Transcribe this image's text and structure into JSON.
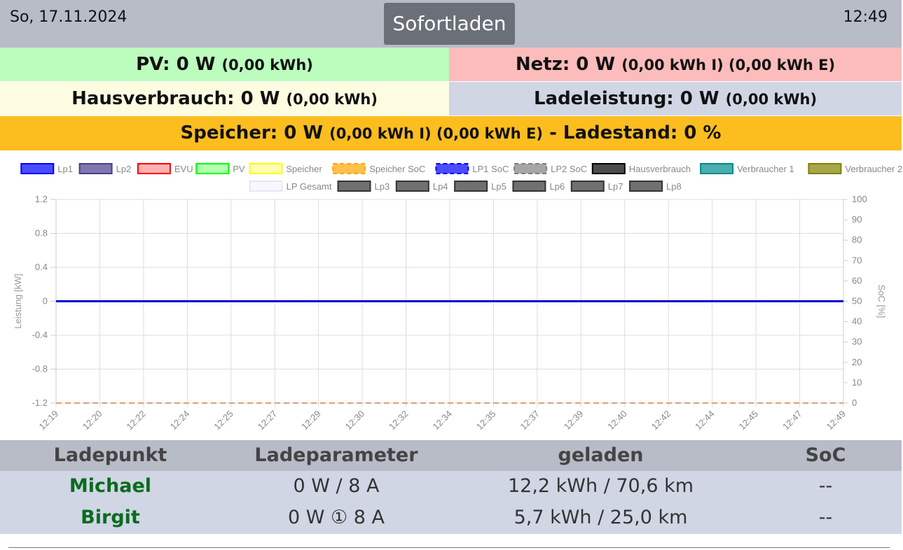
{
  "header": {
    "date": "So, 17.11.2024",
    "mode_button": "Sofortladen",
    "time": "12:49"
  },
  "summary": {
    "pv": {
      "label": "PV: 0 W",
      "detail": "(0,00 kWh)",
      "color": "#bcfcbd"
    },
    "netz": {
      "label": "Netz: 0 W",
      "detail": "(0,00 kWh I) (0,00 kWh E)",
      "color": "#fcbcbc"
    },
    "hausverbrauch": {
      "label": "Hausverbrauch: 0 W",
      "detail": "(0,00 kWh)",
      "color": "#fefce0"
    },
    "ladeleistung": {
      "label": "Ladeleistung: 0 W",
      "detail": "(0,00 kWh)",
      "color": "#d0d6e4"
    },
    "speicher": {
      "label": "Speicher: 0 W",
      "detail": "(0,00 kWh I) (0,00 kWh E)",
      "suffix": "- Ladestand: 0 %",
      "color": "#fcbd1f"
    }
  },
  "chart_data": {
    "type": "line",
    "xlabel": "",
    "ylabel": "Leistung [kW]",
    "y2label": "SoC [%]",
    "ylim": [
      -1.2,
      1.2
    ],
    "y_ticks": [
      "1.2",
      "0.8",
      "0.4",
      "0",
      "-0.4",
      "-0.8",
      "-1.2"
    ],
    "y_tick_values": [
      1.2,
      0.8,
      0.4,
      0,
      -0.4,
      -0.8,
      -1.2
    ],
    "y2lim": [
      0,
      100
    ],
    "y2_ticks": [
      "100",
      "90",
      "80",
      "70",
      "60",
      "50",
      "40",
      "30",
      "20",
      "10",
      "0"
    ],
    "y2_tick_values": [
      100,
      90,
      80,
      70,
      60,
      50,
      40,
      30,
      20,
      10,
      0
    ],
    "categories": [
      "12:19",
      "12:20",
      "12:22",
      "12:24",
      "12:25",
      "12:27",
      "12:29",
      "12:30",
      "12:32",
      "12:34",
      "12:35",
      "12:37",
      "12:39",
      "12:40",
      "12:42",
      "12:44",
      "12:45",
      "12:47",
      "12:49"
    ],
    "grid": true,
    "legend_position": "top",
    "legend": [
      {
        "name": "Lp1",
        "color": "#0000ff",
        "style": "solid"
      },
      {
        "name": "Lp2",
        "color": "#483d8b",
        "style": "solid"
      },
      {
        "name": "EVU",
        "color": "#ff0000",
        "style": "solid",
        "light": true
      },
      {
        "name": "PV",
        "color": "#00ff00",
        "style": "solid",
        "light": true
      },
      {
        "name": "Speicher",
        "color": "#ffff00",
        "style": "solid",
        "light": true
      },
      {
        "name": "Speicher SoC",
        "color": "#ffa500",
        "style": "dashed"
      },
      {
        "name": "LP1 SoC",
        "color": "#0000ff",
        "style": "dashed"
      },
      {
        "name": "LP2 SoC",
        "color": "#808080",
        "style": "dashed"
      },
      {
        "name": "Hausverbrauch",
        "color": "#000000",
        "style": "solid"
      },
      {
        "name": "Verbraucher 1",
        "color": "#008b8b",
        "style": "solid"
      },
      {
        "name": "Verbraucher 2",
        "color": "#808000",
        "style": "solid"
      },
      {
        "name": "LP Gesamt",
        "color": "#e6e6fa",
        "style": "solid",
        "light": true
      },
      {
        "name": "Lp3",
        "color": "#333333",
        "style": "solid"
      },
      {
        "name": "Lp4",
        "color": "#333333",
        "style": "solid"
      },
      {
        "name": "Lp5",
        "color": "#333333",
        "style": "solid"
      },
      {
        "name": "Lp6",
        "color": "#333333",
        "style": "solid"
      },
      {
        "name": "Lp7",
        "color": "#333333",
        "style": "solid"
      },
      {
        "name": "Lp8",
        "color": "#333333",
        "style": "solid"
      }
    ],
    "series": [
      {
        "name": "Lp1",
        "axis": "left",
        "color": "#0000cc",
        "values": [
          0,
          0,
          0,
          0,
          0,
          0,
          0,
          0,
          0,
          0,
          0,
          0,
          0,
          0,
          0,
          0,
          0,
          0,
          0
        ]
      },
      {
        "name": "Speicher SoC",
        "axis": "right",
        "color": "#e0a070",
        "dashed": true,
        "values": [
          0,
          0,
          0,
          0,
          0,
          0,
          0,
          0,
          0,
          0,
          0,
          0,
          0,
          0,
          0,
          0,
          0,
          0,
          0
        ]
      }
    ]
  },
  "table": {
    "headers": [
      "Ladepunkt",
      "Ladeparameter",
      "geladen",
      "SoC"
    ],
    "rows": [
      {
        "name": "Michael",
        "param": "0 W / 8 A",
        "charged": "12,2 kWh / 70,6 km",
        "soc": "--"
      },
      {
        "name": "Birgit",
        "param": "0 W ① 8 A",
        "charged": "5,7 kWh / 25,0 km",
        "soc": "--"
      }
    ]
  }
}
